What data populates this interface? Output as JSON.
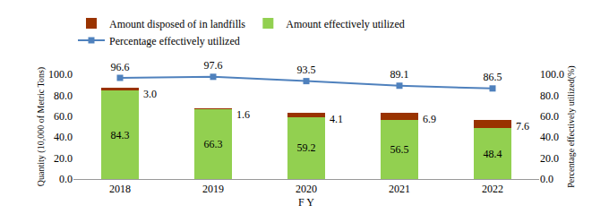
{
  "chart_data": {
    "type": "bar",
    "stacked": true,
    "x_label": "F Y",
    "y_label": "Quantity (10,000 of Metric Tons)",
    "y2_label": "Percentage effectively utilized(%)",
    "categories": [
      "2018",
      "2019",
      "2020",
      "2021",
      "2022"
    ],
    "series": [
      {
        "name": "Amount effectively utilized",
        "type": "bar",
        "color": "#92d050",
        "values": [
          84.3,
          66.3,
          59.2,
          56.5,
          48.4
        ]
      },
      {
        "name": "Amount disposed of in landfills",
        "type": "bar",
        "color": "#993300",
        "values": [
          3.0,
          1.6,
          4.1,
          6.9,
          7.6
        ],
        "value_labels": [
          "3.0",
          "1.6",
          "4.1",
          "6.9",
          "7.6"
        ]
      },
      {
        "name": "Percentage effectively utilized",
        "type": "line",
        "axis": "y2",
        "color": "#4f81bd",
        "marker": "square",
        "values": [
          96.6,
          97.6,
          93.5,
          89.1,
          86.5
        ]
      }
    ],
    "ylim": [
      0,
      100
    ],
    "yticks": [
      {
        "value": 0,
        "label": "0.0"
      },
      {
        "value": 20,
        "label": "20.0"
      },
      {
        "value": 40,
        "label": "40.0"
      },
      {
        "value": 60,
        "label": "60.0"
      },
      {
        "value": 80,
        "label": "80.0"
      },
      {
        "value": 100,
        "label": "100.0"
      }
    ],
    "y2lim": [
      0,
      100
    ],
    "y2ticks": [
      {
        "value": 0,
        "label": "0.0"
      },
      {
        "value": 20,
        "label": "20.0"
      },
      {
        "value": 40,
        "label": "40.0"
      },
      {
        "value": 60,
        "label": "60.0"
      },
      {
        "value": 80,
        "label": "80.0"
      },
      {
        "value": 100,
        "label": "100.0"
      }
    ],
    "grid": false,
    "legend": "top",
    "data_labels": true
  }
}
